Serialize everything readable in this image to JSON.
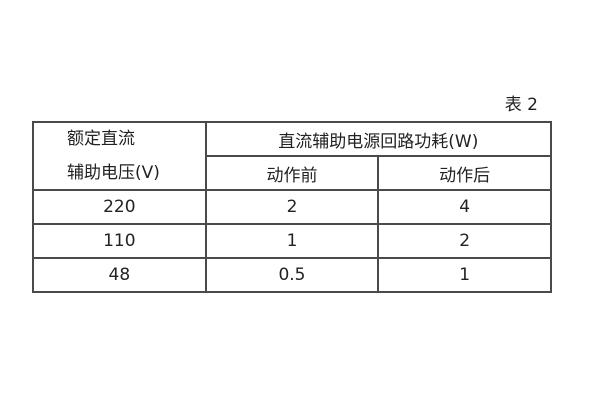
{
  "caption": "表 2",
  "table": {
    "header": {
      "rated_dc_line1": "额定直流",
      "rated_dc_line2": "辅助电压(V)",
      "power_header": "直流辅助电源回路功耗(W)",
      "sub_before": "动作前",
      "sub_after": "动作后"
    },
    "rows": [
      {
        "voltage": "220",
        "before": "2",
        "after": "4"
      },
      {
        "voltage": "110",
        "before": "1",
        "after": "2"
      },
      {
        "voltage": "48",
        "before": "0.5",
        "after": "1"
      }
    ]
  },
  "colors": {
    "background": "#ffffff",
    "border": "#4a4a4a",
    "text": "#222222"
  }
}
